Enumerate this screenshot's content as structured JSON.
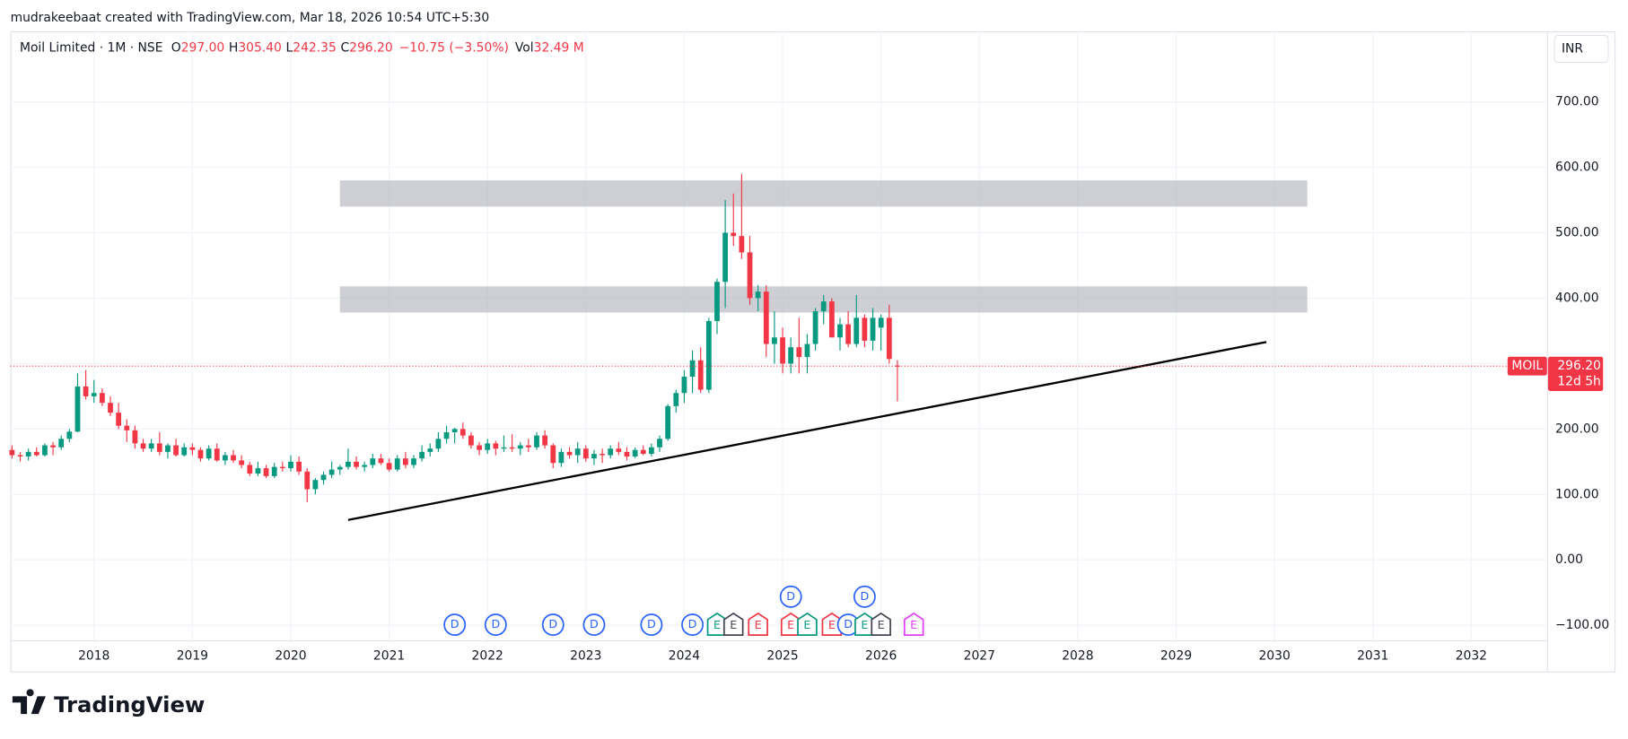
{
  "attribution": "mudrakeebaat created with TradingView.com, Mar 18, 2026 10:54 UTC+5:30",
  "logo": "TradingView",
  "chart_data": {
    "type": "candlestick",
    "symbol_line": "Moil Limited · 1M · NSE",
    "header": [
      {
        "key": "O",
        "value": "297.00"
      },
      {
        "key": "H",
        "value": "305.40"
      },
      {
        "key": "L",
        "value": "242.35"
      },
      {
        "key": "C",
        "value": "296.20"
      }
    ],
    "change": "−10.75 (−3.50%)",
    "volume": {
      "key": "Vol",
      "value": "32.49 M"
    },
    "currency": "INR",
    "up_color": "#089981",
    "down_color": "#f23645",
    "xlim": [
      2017.15,
      2032.77
    ],
    "xticks": [
      2018,
      2019,
      2020,
      2021,
      2022,
      2023,
      2024,
      2025,
      2026,
      2027,
      2028,
      2029,
      2030,
      2031,
      2032
    ],
    "ylim": [
      -123,
      808
    ],
    "yticks": [
      {
        "value": 700,
        "label": "700.00"
      },
      {
        "value": 600,
        "label": "600.00"
      },
      {
        "value": 500,
        "label": "500.00"
      },
      {
        "value": 400,
        "label": "400.00"
      },
      {
        "value": 300,
        "label": "300.00"
      },
      {
        "value": 200,
        "label": "200.00"
      },
      {
        "value": 100,
        "label": "100.00"
      },
      {
        "value": 0,
        "label": "0.00"
      },
      {
        "value": -100,
        "label": "−100.00"
      }
    ],
    "x": [
      "2017-03",
      "2017-04",
      "2017-05",
      "2017-06",
      "2017-07",
      "2017-08",
      "2017-09",
      "2017-10",
      "2017-11",
      "2017-12",
      "2018-01",
      "2018-02",
      "2018-03",
      "2018-04",
      "2018-05",
      "2018-06",
      "2018-07",
      "2018-08",
      "2018-09",
      "2018-10",
      "2018-11",
      "2018-12",
      "2019-01",
      "2019-02",
      "2019-03",
      "2019-04",
      "2019-05",
      "2019-06",
      "2019-07",
      "2019-08",
      "2019-09",
      "2019-10",
      "2019-11",
      "2019-12",
      "2020-01",
      "2020-02",
      "2020-03",
      "2020-04",
      "2020-05",
      "2020-06",
      "2020-07",
      "2020-08",
      "2020-09",
      "2020-10",
      "2020-11",
      "2020-12",
      "2021-01",
      "2021-02",
      "2021-03",
      "2021-04",
      "2021-05",
      "2021-06",
      "2021-07",
      "2021-08",
      "2021-09",
      "2021-10",
      "2021-11",
      "2021-12",
      "2022-01",
      "2022-02",
      "2022-03",
      "2022-04",
      "2022-05",
      "2022-06",
      "2022-07",
      "2022-08",
      "2022-09",
      "2022-10",
      "2022-11",
      "2022-12",
      "2023-01",
      "2023-02",
      "2023-03",
      "2023-04",
      "2023-05",
      "2023-06",
      "2023-07",
      "2023-08",
      "2023-09",
      "2023-10",
      "2023-11",
      "2023-12",
      "2024-01",
      "2024-02",
      "2024-03",
      "2024-04",
      "2024-05",
      "2024-06",
      "2024-07",
      "2024-08",
      "2024-09",
      "2024-10",
      "2024-11",
      "2024-12",
      "2025-01",
      "2025-02",
      "2025-03",
      "2025-04",
      "2025-05",
      "2025-06",
      "2025-07",
      "2025-08",
      "2025-09",
      "2025-10",
      "2025-11",
      "2025-12",
      "2026-01",
      "2026-02",
      "2026-03"
    ],
    "ohlc": [
      [
        168,
        175,
        155,
        160
      ],
      [
        160,
        165,
        150,
        158
      ],
      [
        158,
        170,
        152,
        165
      ],
      [
        165,
        172,
        158,
        160
      ],
      [
        160,
        178,
        158,
        175
      ],
      [
        175,
        180,
        160,
        172
      ],
      [
        172,
        190,
        168,
        185
      ],
      [
        185,
        200,
        180,
        196
      ],
      [
        196,
        285,
        195,
        265
      ],
      [
        265,
        290,
        245,
        250
      ],
      [
        250,
        275,
        240,
        255
      ],
      [
        255,
        262,
        235,
        240
      ],
      [
        240,
        250,
        220,
        225
      ],
      [
        225,
        240,
        200,
        205
      ],
      [
        205,
        215,
        180,
        198
      ],
      [
        198,
        205,
        170,
        178
      ],
      [
        178,
        185,
        165,
        170
      ],
      [
        170,
        185,
        165,
        178
      ],
      [
        178,
        195,
        160,
        165
      ],
      [
        165,
        178,
        155,
        175
      ],
      [
        175,
        185,
        158,
        160
      ],
      [
        160,
        178,
        158,
        172
      ],
      [
        172,
        178,
        160,
        168
      ],
      [
        168,
        172,
        150,
        155
      ],
      [
        155,
        175,
        152,
        170
      ],
      [
        170,
        178,
        150,
        152
      ],
      [
        152,
        165,
        145,
        160
      ],
      [
        160,
        168,
        148,
        152
      ],
      [
        152,
        160,
        140,
        145
      ],
      [
        145,
        150,
        128,
        132
      ],
      [
        132,
        150,
        128,
        140
      ],
      [
        140,
        145,
        125,
        128
      ],
      [
        128,
        148,
        125,
        142
      ],
      [
        142,
        150,
        135,
        140
      ],
      [
        140,
        160,
        135,
        150
      ],
      [
        150,
        158,
        130,
        135
      ],
      [
        135,
        140,
        88,
        108
      ],
      [
        108,
        125,
        100,
        122
      ],
      [
        122,
        135,
        115,
        130
      ],
      [
        130,
        150,
        125,
        138
      ],
      [
        138,
        145,
        130,
        142
      ],
      [
        142,
        170,
        138,
        150
      ],
      [
        150,
        158,
        138,
        142
      ],
      [
        142,
        150,
        135,
        145
      ],
      [
        145,
        162,
        140,
        155
      ],
      [
        155,
        162,
        145,
        148
      ],
      [
        148,
        155,
        135,
        138
      ],
      [
        138,
        160,
        135,
        155
      ],
      [
        155,
        165,
        140,
        145
      ],
      [
        145,
        160,
        140,
        155
      ],
      [
        155,
        175,
        150,
        165
      ],
      [
        165,
        178,
        158,
        170
      ],
      [
        170,
        195,
        165,
        185
      ],
      [
        185,
        205,
        178,
        195
      ],
      [
        195,
        202,
        178,
        200
      ],
      [
        200,
        210,
        185,
        190
      ],
      [
        190,
        195,
        170,
        175
      ],
      [
        175,
        180,
        160,
        168
      ],
      [
        168,
        185,
        162,
        178
      ],
      [
        178,
        182,
        160,
        170
      ],
      [
        170,
        190,
        165,
        172
      ],
      [
        172,
        192,
        165,
        170
      ],
      [
        170,
        180,
        160,
        175
      ],
      [
        175,
        185,
        165,
        172
      ],
      [
        172,
        195,
        168,
        190
      ],
      [
        190,
        198,
        170,
        175
      ],
      [
        175,
        178,
        140,
        148
      ],
      [
        148,
        170,
        142,
        165
      ],
      [
        165,
        172,
        155,
        160
      ],
      [
        160,
        180,
        148,
        170
      ],
      [
        170,
        175,
        150,
        155
      ],
      [
        155,
        168,
        145,
        162
      ],
      [
        162,
        170,
        148,
        160
      ],
      [
        160,
        175,
        155,
        170
      ],
      [
        170,
        180,
        160,
        165
      ],
      [
        165,
        172,
        152,
        158
      ],
      [
        158,
        172,
        155,
        168
      ],
      [
        168,
        175,
        160,
        162
      ],
      [
        162,
        178,
        158,
        172
      ],
      [
        172,
        190,
        165,
        185
      ],
      [
        185,
        238,
        182,
        235
      ],
      [
        235,
        260,
        225,
        255
      ],
      [
        255,
        290,
        240,
        280
      ],
      [
        280,
        320,
        255,
        305
      ],
      [
        305,
        325,
        255,
        260
      ],
      [
        260,
        370,
        255,
        365
      ],
      [
        365,
        430,
        345,
        425
      ],
      [
        425,
        550,
        385,
        500
      ],
      [
        500,
        560,
        480,
        495
      ],
      [
        495,
        590,
        460,
        470
      ],
      [
        470,
        495,
        390,
        400
      ],
      [
        400,
        420,
        380,
        410
      ],
      [
        410,
        420,
        310,
        330
      ],
      [
        330,
        380,
        300,
        340
      ],
      [
        340,
        355,
        285,
        300
      ],
      [
        300,
        340,
        285,
        325
      ],
      [
        325,
        370,
        285,
        310
      ],
      [
        310,
        345,
        285,
        330
      ],
      [
        330,
        385,
        320,
        380
      ],
      [
        380,
        405,
        360,
        395
      ],
      [
        395,
        400,
        340,
        340
      ],
      [
        340,
        370,
        320,
        360
      ],
      [
        360,
        380,
        325,
        330
      ],
      [
        330,
        405,
        325,
        370
      ],
      [
        370,
        375,
        325,
        335
      ],
      [
        335,
        385,
        320,
        370
      ],
      [
        355,
        375,
        320,
        370
      ],
      [
        370,
        390,
        300,
        307
      ],
      [
        297,
        305.4,
        242.35,
        296.2
      ]
    ],
    "price_line": {
      "value": 296.2,
      "label": "296.20",
      "symbol": "MOIL",
      "countdown": "12d 5h"
    },
    "zones": [
      {
        "x": [
          "2020-07",
          "2030-05"
        ],
        "y": [
          540,
          580
        ]
      },
      {
        "x": [
          "2020-07",
          "2030-05"
        ],
        "y": [
          378,
          418
        ]
      }
    ],
    "trendline": {
      "x": [
        "2020-08",
        "2029-12"
      ],
      "y": [
        61,
        333
      ]
    },
    "events": [
      {
        "date": "2021-09",
        "label": "D",
        "color": "#2962ff"
      },
      {
        "date": "2022-02",
        "label": "D",
        "color": "#2962ff"
      },
      {
        "date": "2022-09",
        "label": "D",
        "color": "#2962ff"
      },
      {
        "date": "2023-02",
        "label": "D",
        "color": "#2962ff"
      },
      {
        "date": "2023-09",
        "label": "D",
        "color": "#2962ff"
      },
      {
        "date": "2024-02",
        "label": "D",
        "color": "#2962ff"
      },
      {
        "date": "2024-05",
        "label": "E",
        "color": "#089981"
      },
      {
        "date": "2024-07",
        "label": "E",
        "color": "#434651"
      },
      {
        "date": "2024-10",
        "label": "E",
        "color": "#f23645"
      },
      {
        "date": "2025-02",
        "label": "D",
        "color": "#2962ff"
      },
      {
        "date": "2025-02",
        "label": "E",
        "color": "#f23645"
      },
      {
        "date": "2025-04",
        "label": "E",
        "color": "#089981"
      },
      {
        "date": "2025-07",
        "label": "E",
        "color": "#f23645"
      },
      {
        "date": "2025-09",
        "label": "D",
        "color": "#2962ff"
      },
      {
        "date": "2025-11",
        "label": "D",
        "color": "#2962ff"
      },
      {
        "date": "2025-11",
        "label": "E",
        "color": "#089981"
      },
      {
        "date": "2026-01",
        "label": "E",
        "color": "#434651"
      },
      {
        "date": "2026-05",
        "label": "E",
        "color": "#e040fb"
      }
    ]
  }
}
